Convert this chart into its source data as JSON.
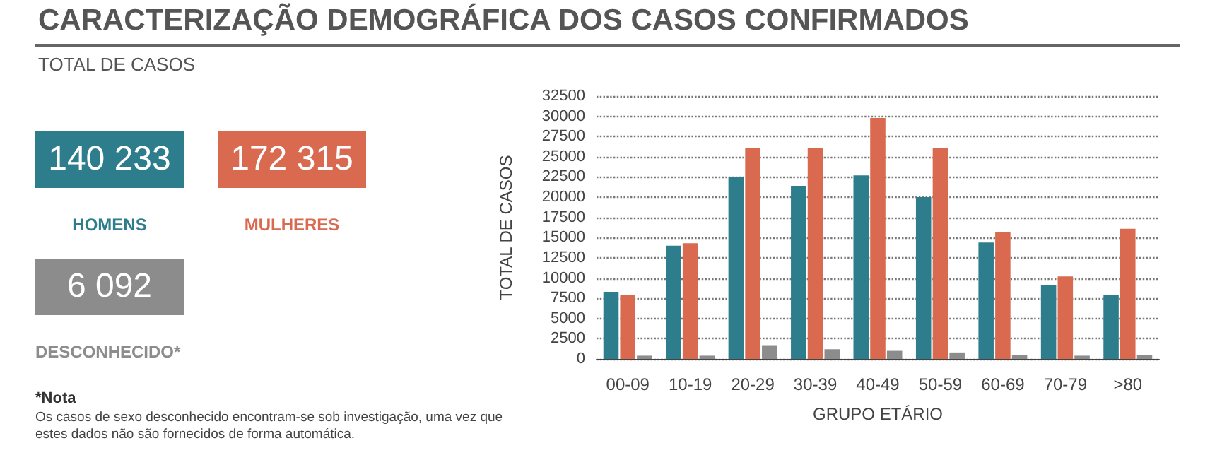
{
  "chart_data": [
    {
      "type": "other",
      "title": "CARACTERIZAÇÃO DEMOGRÁFICA DOS CASOS CONFIRMADOS",
      "subtitle": "TOTAL DE CASOS",
      "categories": [
        "HOMENS",
        "MULHERES",
        "DESCONHECIDO*"
      ],
      "value_labels": [
        "140 233",
        "172 315",
        "6 092"
      ],
      "colors": [
        "#2e7d8c",
        "#d9694f",
        "#8c8c8c"
      ],
      "annotations": [
        "*Nota",
        "Os casos de sexo desconhecido encontram-se sob investigação, uma vez que estes dados não são fornecidos de forma automática."
      ]
    },
    {
      "type": "bar",
      "xlabel": "GRUPO ETÁRIO",
      "ylabel": "TOTAL DE CASOS",
      "categories": [
        "00-09",
        "10-19",
        "20-29",
        "30-39",
        "40-49",
        "50-59",
        "60-69",
        "70-79",
        ">80"
      ],
      "series": [
        {
          "color": "#2e7d8c",
          "values": [
            8300,
            14000,
            22500,
            21400,
            22700,
            20000,
            14400,
            9100,
            7900
          ]
        },
        {
          "color": "#d9694f",
          "values": [
            7900,
            14300,
            26100,
            26100,
            29800,
            26100,
            15700,
            10200,
            16100
          ]
        },
        {
          "color": "#8c8c8c",
          "values": [
            400,
            400,
            1700,
            1200,
            1000,
            800,
            500,
            400,
            500
          ]
        }
      ],
      "ylim": [
        0,
        32500
      ],
      "yticks": [
        0,
        2500,
        5000,
        7500,
        10000,
        12500,
        15000,
        17500,
        20000,
        22500,
        25000,
        27500,
        30000,
        32500
      ],
      "grid": "y",
      "line_style": "dotted"
    }
  ]
}
